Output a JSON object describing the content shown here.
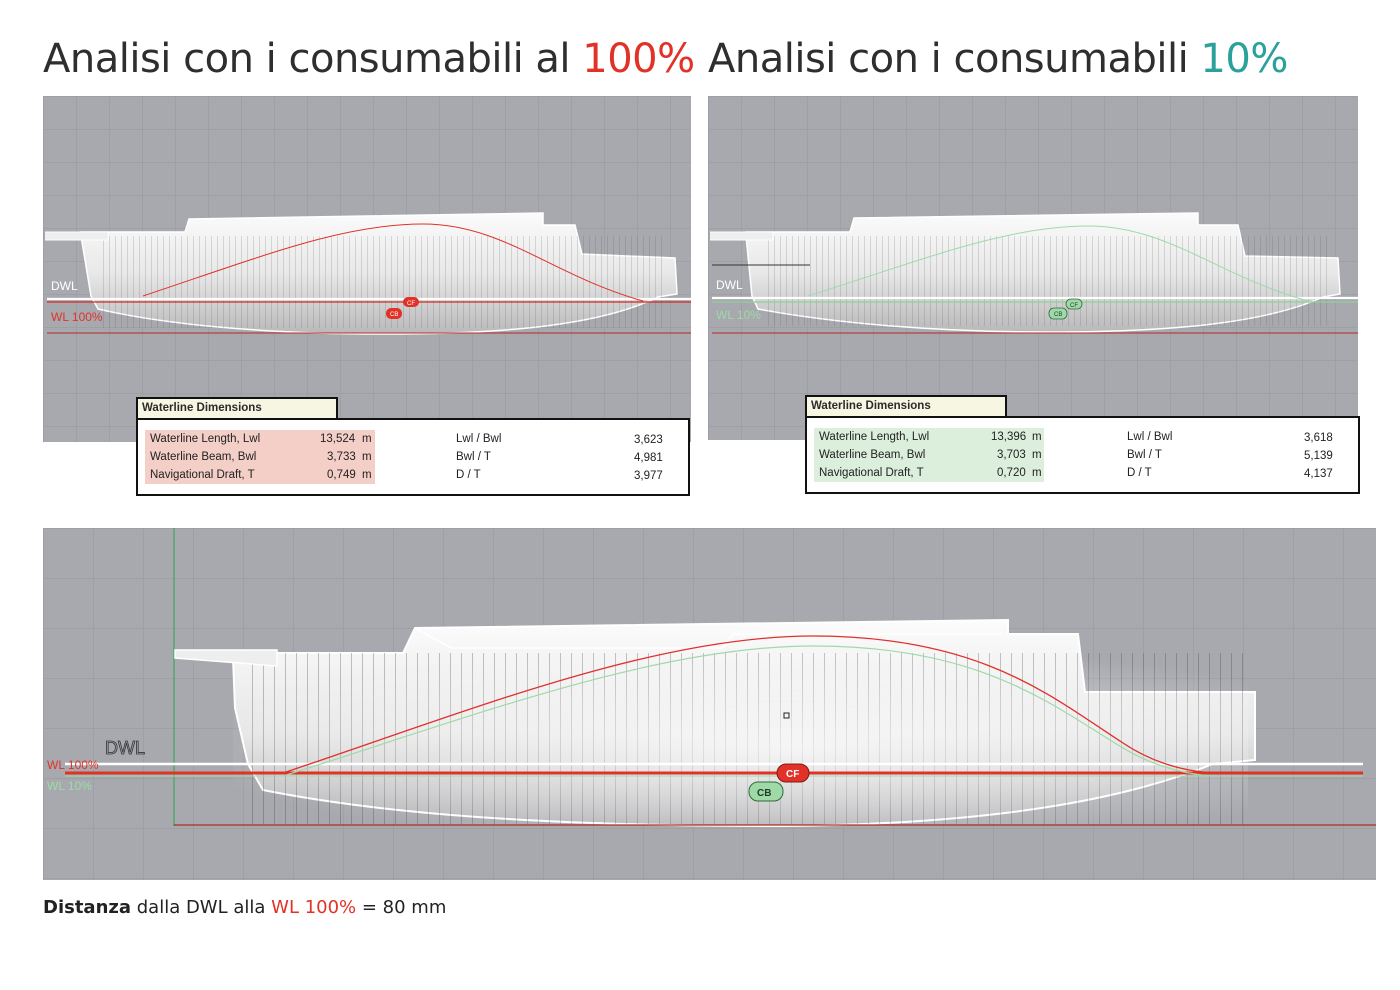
{
  "titles": {
    "left_prefix": "Analisi con i consumabili al ",
    "left_value": "100%",
    "right_prefix": "Analisi con i consumabili ",
    "right_value": "10%"
  },
  "colors": {
    "red": "#e23228",
    "teal": "#2aa19a",
    "green_label": "#9fd9a8",
    "grid_bg": "#a7a9ae"
  },
  "labels": {
    "dwl": "DWL",
    "wl100": "WL 100%",
    "wl10": "WL 10%",
    "cf": "CF",
    "cb": "CB"
  },
  "table_left": {
    "tab": "Waterline Dimensions",
    "rows": [
      {
        "name": "Waterline Length, Lwl",
        "value": "13,524",
        "unit": "m",
        "ratio_name": "Lwl / Bwl",
        "ratio_value": "3,623"
      },
      {
        "name": "Waterline Beam, Bwl",
        "value": "3,733",
        "unit": "m",
        "ratio_name": "Bwl / T",
        "ratio_value": "4,981"
      },
      {
        "name": "Navigational Draft, T",
        "value": "0,749",
        "unit": "m",
        "ratio_name": "D / T",
        "ratio_value": "3,977"
      }
    ]
  },
  "table_right": {
    "tab": "Waterline Dimensions",
    "rows": [
      {
        "name": "Waterline Length, Lwl",
        "value": "13,396",
        "unit": "m",
        "ratio_name": "Lwl / Bwl",
        "ratio_value": "3,618"
      },
      {
        "name": "Waterline Beam, Bwl",
        "value": "3,703",
        "unit": "m",
        "ratio_name": "Bwl / T",
        "ratio_value": "5,139"
      },
      {
        "name": "Navigational Draft, T",
        "value": "0,720",
        "unit": "m",
        "ratio_name": "D / T",
        "ratio_value": "4,137"
      }
    ]
  },
  "footer": {
    "bold": "Distanza",
    "mid": " dalla DWL alla ",
    "red": "WL 100%",
    "end": " = 80 mm"
  }
}
